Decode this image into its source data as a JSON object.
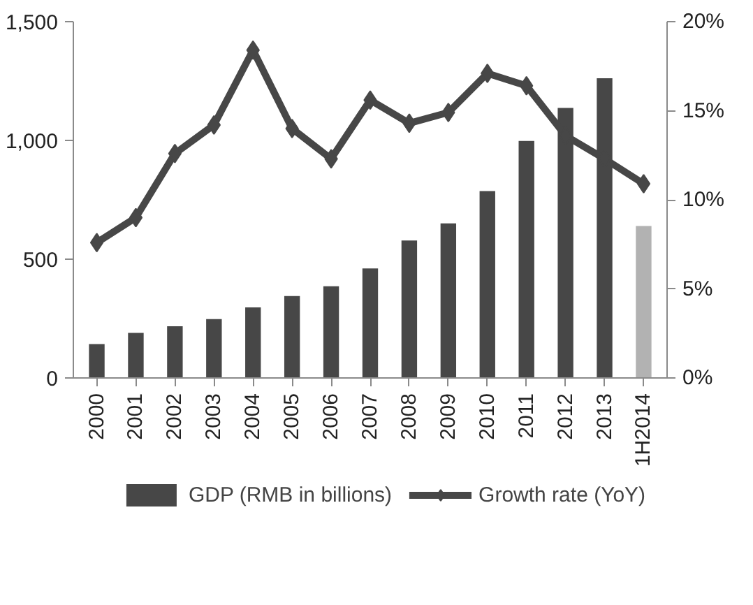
{
  "chart_data": {
    "type": "bar",
    "categories": [
      "2000",
      "2001",
      "2002",
      "2003",
      "2004",
      "2005",
      "2006",
      "2007",
      "2008",
      "2009",
      "2010",
      "2011",
      "2012",
      "2013",
      "1H2014"
    ],
    "series": [
      {
        "name": "GDP (RMB in billions)",
        "colors": [
          "#474747",
          "#474747",
          "#474747",
          "#474747",
          "#474747",
          "#474747",
          "#474747",
          "#474747",
          "#474747",
          "#474747",
          "#474747",
          "#474747",
          "#474747",
          "#474747",
          "#b2b2b2"
        ],
        "values": [
          143,
          190,
          218,
          248,
          297,
          345,
          386,
          461,
          579,
          651,
          787,
          998,
          1137,
          1262,
          640
        ]
      },
      {
        "name": "Growth rate (YoY)",
        "type": "line",
        "axis": "y2",
        "color": "#474747",
        "marker": "diamond",
        "values": [
          7.6,
          9.0,
          12.6,
          14.2,
          18.4,
          14.0,
          12.3,
          15.6,
          14.3,
          14.9,
          17.1,
          16.4,
          13.6,
          12.3,
          10.9
        ]
      }
    ],
    "ylim": [
      0,
      1500
    ],
    "yticks": [
      0,
      {
        "value": 500,
        "label": "500"
      },
      {
        "value": 1000,
        "label": "1,000"
      },
      {
        "value": 1500,
        "label": "1,500"
      }
    ],
    "y2lim": [
      0,
      20
    ],
    "y2ticks": [
      {
        "value": 0,
        "label": "0%"
      },
      {
        "value": 5,
        "label": "5%"
      },
      {
        "value": 10,
        "label": "10%"
      },
      {
        "value": 15,
        "label": "15%"
      },
      {
        "value": 20,
        "label": "20%"
      }
    ],
    "grid": false,
    "legend": "bottom"
  }
}
